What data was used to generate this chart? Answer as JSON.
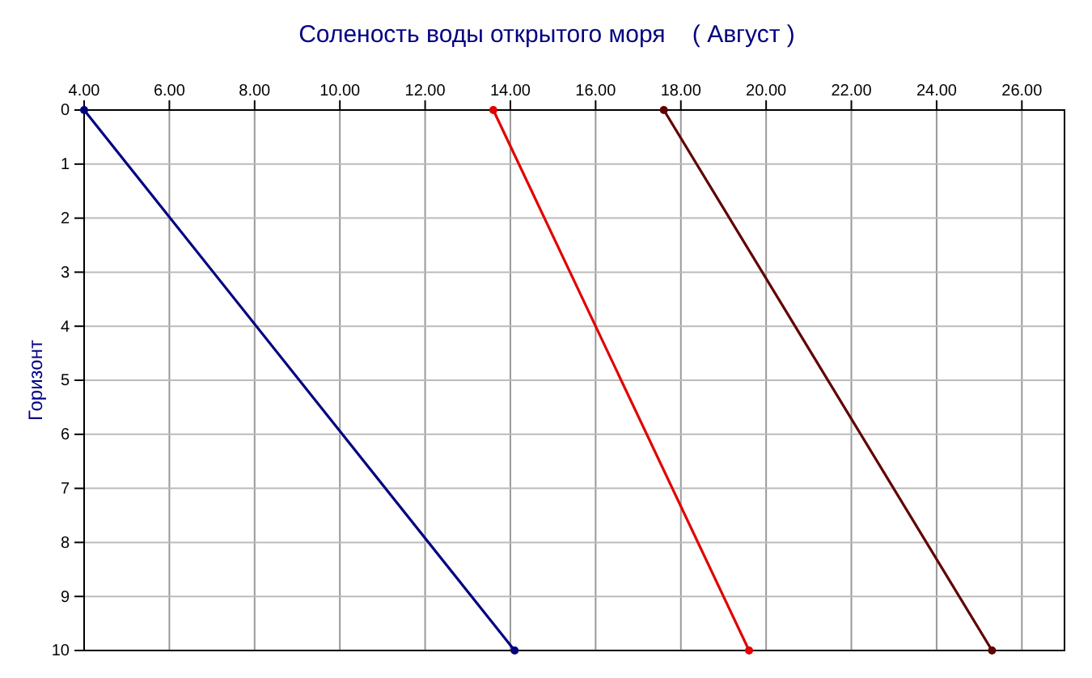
{
  "chart_data": {
    "type": "line",
    "title": "Соленость воды открытого моря    ( Август )",
    "ylabel": "Горизонт",
    "xlim": [
      4,
      27
    ],
    "xticks": [
      {
        "value": 4,
        "label": "4.00"
      },
      {
        "value": 6,
        "label": "6.00"
      },
      {
        "value": 8,
        "label": "8.00"
      },
      {
        "value": 10,
        "label": "10.00"
      },
      {
        "value": 12,
        "label": "12.00"
      },
      {
        "value": 14,
        "label": "14.00"
      },
      {
        "value": 16,
        "label": "16.00"
      },
      {
        "value": 18,
        "label": "18.00"
      },
      {
        "value": 20,
        "label": "20.00"
      },
      {
        "value": 22,
        "label": "22.00"
      },
      {
        "value": 24,
        "label": "24.00"
      },
      {
        "value": 26,
        "label": "26.00"
      }
    ],
    "ylim": [
      10,
      0
    ],
    "yticks": [
      0,
      1,
      2,
      3,
      4,
      5,
      6,
      7,
      8,
      9,
      10
    ],
    "grid": true,
    "marker": "circle",
    "line_style": "solid",
    "series": [
      {
        "color": "#000080",
        "x": [
          4,
          14.1
        ],
        "values": [
          0,
          10
        ]
      },
      {
        "color": "#e00000",
        "x": [
          13.6,
          19.6
        ],
        "values": [
          0,
          10
        ]
      },
      {
        "color": "#600000",
        "x": [
          17.6,
          25.3
        ],
        "values": [
          0,
          10
        ]
      }
    ]
  }
}
